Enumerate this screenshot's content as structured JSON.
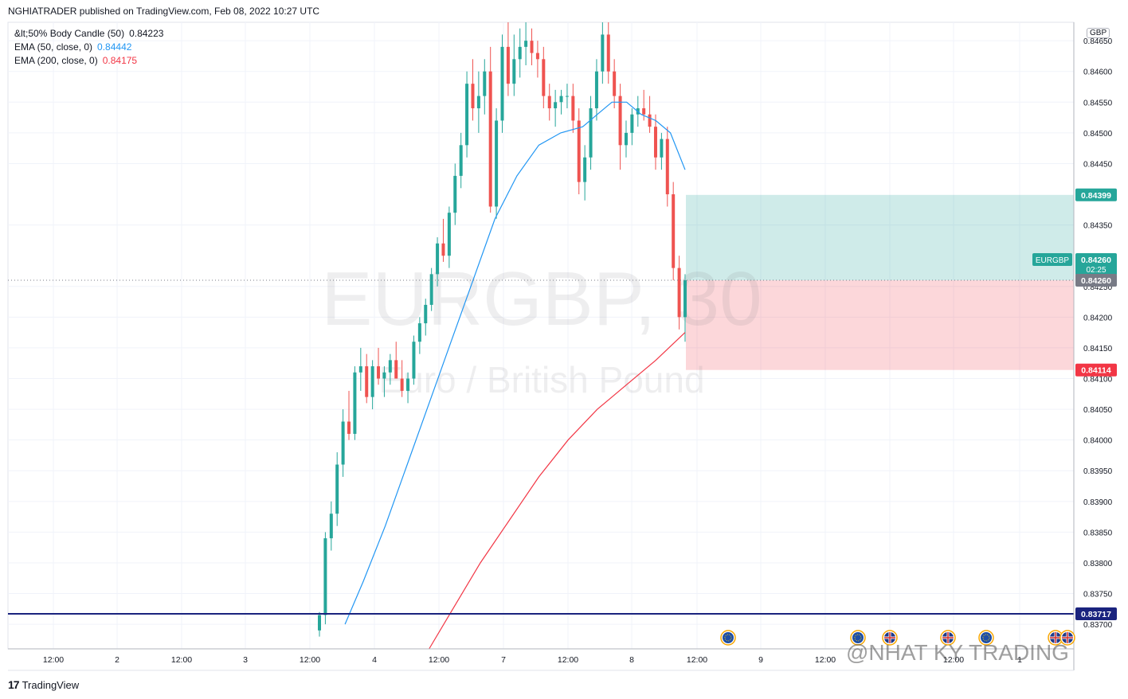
{
  "header": {
    "published": "NGHIATRADER published on TradingView.com, Feb 08, 2022 10:27 UTC"
  },
  "legend": {
    "rows": [
      {
        "label": "&lt;50% Body Candle (50)",
        "value": "0.84223",
        "color": "#131722"
      },
      {
        "label": "EMA (50, close, 0)",
        "value": "0.84442",
        "color": "#2196f3"
      },
      {
        "label": "EMA (200, close, 0)",
        "value": "0.84175",
        "color": "#f23645"
      }
    ]
  },
  "watermark": {
    "symbol": "EURGBP, 30",
    "description": "Euro / British Pound"
  },
  "currency_badge": "GBP",
  "price_axis": {
    "ticks": [
      "0.84650",
      "0.84600",
      "0.84550",
      "0.84500",
      "0.84450",
      "0.84350",
      "0.84250",
      "0.84200",
      "0.84150",
      "0.84100",
      "0.84050",
      "0.84000",
      "0.83950",
      "0.83900",
      "0.83850",
      "0.83800",
      "0.83750",
      "0.83700"
    ]
  },
  "price_labels": {
    "target": "0.84399",
    "symbol_tag": "EURGBP",
    "last": "0.84260",
    "countdown": "02:25",
    "entry": "0.84260",
    "stop": "0.84114",
    "support": "0.83717"
  },
  "time_axis": {
    "labels": [
      "12:00",
      "2",
      "12:00",
      "3",
      "12:00",
      "4",
      "12:00",
      "7",
      "12:00",
      "8",
      "12:00",
      "9",
      "12:00",
      "12:00",
      "1"
    ]
  },
  "footer": {
    "brand": "TradingView"
  },
  "credit_watermark": "@NHAT KY TRADING",
  "colors": {
    "up": "#26a69a",
    "down": "#ef5350",
    "ema50": "#2196f3",
    "ema200": "#f23645",
    "target_zone": "rgba(38,166,154,0.22)",
    "stop_zone": "rgba(242,54,69,0.20)",
    "support_line": "#1a237e"
  },
  "chart_data": {
    "type": "candlestick",
    "symbol": "EURGBP",
    "timeframe": "30",
    "ylim": [
      0.8366,
      0.8468
    ],
    "ema50_points": [
      [
        0.07,
        0.837
      ],
      [
        0.12,
        0.8377
      ],
      [
        0.18,
        0.8386
      ],
      [
        0.24,
        0.8396
      ],
      [
        0.3,
        0.8406
      ],
      [
        0.36,
        0.8416
      ],
      [
        0.42,
        0.8426
      ],
      [
        0.48,
        0.8436
      ],
      [
        0.54,
        0.8443
      ],
      [
        0.6,
        0.8448
      ],
      [
        0.66,
        0.845
      ],
      [
        0.72,
        0.8451
      ],
      [
        0.76,
        0.8453
      ],
      [
        0.8,
        0.8455
      ],
      [
        0.84,
        0.8455
      ],
      [
        0.88,
        0.8453
      ],
      [
        0.92,
        0.8452
      ],
      [
        0.96,
        0.845
      ],
      [
        1.0,
        0.8444
      ]
    ],
    "ema200_points": [
      [
        0.3,
        0.8366
      ],
      [
        0.36,
        0.8372
      ],
      [
        0.44,
        0.838
      ],
      [
        0.52,
        0.8387
      ],
      [
        0.6,
        0.8394
      ],
      [
        0.68,
        0.84
      ],
      [
        0.76,
        0.8405
      ],
      [
        0.84,
        0.8409
      ],
      [
        0.92,
        0.8413
      ],
      [
        1.0,
        0.84175
      ]
    ],
    "position": {
      "entry": 0.8426,
      "target": 0.84399,
      "stop": 0.84114
    },
    "support_level": 0.83717,
    "candles_ohlc": [
      [
        0.8369,
        0.8372,
        0.8368,
        0.83715
      ],
      [
        0.83715,
        0.8385,
        0.837,
        0.8384
      ],
      [
        0.8384,
        0.839,
        0.8382,
        0.8388
      ],
      [
        0.8388,
        0.8398,
        0.8386,
        0.8396
      ],
      [
        0.8396,
        0.8405,
        0.8394,
        0.8403
      ],
      [
        0.8403,
        0.8408,
        0.84,
        0.8401
      ],
      [
        0.8401,
        0.8412,
        0.84,
        0.8411
      ],
      [
        0.8411,
        0.8415,
        0.8408,
        0.8412
      ],
      [
        0.8412,
        0.8414,
        0.8406,
        0.8407
      ],
      [
        0.8407,
        0.8413,
        0.8405,
        0.8412
      ],
      [
        0.8412,
        0.8415,
        0.8409,
        0.841
      ],
      [
        0.841,
        0.8412,
        0.8407,
        0.8411
      ],
      [
        0.8411,
        0.8414,
        0.8409,
        0.8413
      ],
      [
        0.8413,
        0.8416,
        0.841,
        0.841
      ],
      [
        0.841,
        0.8413,
        0.8407,
        0.8408
      ],
      [
        0.8408,
        0.8411,
        0.8406,
        0.841
      ],
      [
        0.841,
        0.8417,
        0.8409,
        0.8416
      ],
      [
        0.8416,
        0.842,
        0.8414,
        0.8419
      ],
      [
        0.8419,
        0.8423,
        0.8417,
        0.8422
      ],
      [
        0.8422,
        0.8428,
        0.8421,
        0.8427
      ],
      [
        0.8427,
        0.8433,
        0.8425,
        0.8432
      ],
      [
        0.8432,
        0.8436,
        0.8429,
        0.843
      ],
      [
        0.843,
        0.8438,
        0.8428,
        0.8437
      ],
      [
        0.8437,
        0.8445,
        0.8435,
        0.8443
      ],
      [
        0.8443,
        0.845,
        0.8441,
        0.8448
      ],
      [
        0.8448,
        0.846,
        0.8446,
        0.8458
      ],
      [
        0.8458,
        0.8462,
        0.8452,
        0.8454
      ],
      [
        0.8454,
        0.846,
        0.845,
        0.8456
      ],
      [
        0.8456,
        0.8462,
        0.8453,
        0.846
      ],
      [
        0.846,
        0.8464,
        0.8437,
        0.8438
      ],
      [
        0.8438,
        0.8454,
        0.8436,
        0.8452
      ],
      [
        0.8452,
        0.8466,
        0.845,
        0.8464
      ],
      [
        0.8464,
        0.8468,
        0.8456,
        0.8458
      ],
      [
        0.8458,
        0.8466,
        0.8456,
        0.8462
      ],
      [
        0.8462,
        0.8467,
        0.8459,
        0.8464
      ],
      [
        0.8464,
        0.8468,
        0.8461,
        0.8465
      ],
      [
        0.8465,
        0.8467,
        0.8461,
        0.8463
      ],
      [
        0.8463,
        0.8465,
        0.8459,
        0.8462
      ],
      [
        0.8462,
        0.8464,
        0.8454,
        0.8456
      ],
      [
        0.8456,
        0.8458,
        0.8452,
        0.8454
      ],
      [
        0.8454,
        0.8457,
        0.8451,
        0.8455
      ],
      [
        0.8455,
        0.8457,
        0.8453,
        0.8456
      ],
      [
        0.8456,
        0.8458,
        0.8454,
        0.8456
      ],
      [
        0.8456,
        0.8458,
        0.845,
        0.8452
      ],
      [
        0.8452,
        0.8454,
        0.844,
        0.8442
      ],
      [
        0.8442,
        0.8448,
        0.8439,
        0.8446
      ],
      [
        0.8446,
        0.8456,
        0.8444,
        0.8454
      ],
      [
        0.8454,
        0.8462,
        0.8452,
        0.846
      ],
      [
        0.846,
        0.8468,
        0.8458,
        0.8466
      ],
      [
        0.8466,
        0.8468,
        0.8458,
        0.846
      ],
      [
        0.846,
        0.8462,
        0.8454,
        0.8456
      ],
      [
        0.8456,
        0.8458,
        0.8444,
        0.8448
      ],
      [
        0.8448,
        0.8452,
        0.8446,
        0.845
      ],
      [
        0.845,
        0.8454,
        0.8448,
        0.8453
      ],
      [
        0.8453,
        0.8456,
        0.8451,
        0.8454
      ],
      [
        0.8454,
        0.8457,
        0.8452,
        0.8453
      ],
      [
        0.8453,
        0.8456,
        0.845,
        0.8451
      ],
      [
        0.8451,
        0.8453,
        0.8444,
        0.8446
      ],
      [
        0.8446,
        0.845,
        0.8444,
        0.8449
      ],
      [
        0.8449,
        0.8451,
        0.8438,
        0.844
      ],
      [
        0.844,
        0.8442,
        0.8426,
        0.8428
      ],
      [
        0.8428,
        0.843,
        0.8418,
        0.842
      ],
      [
        0.842,
        0.8427,
        0.8416,
        0.8426
      ]
    ]
  }
}
